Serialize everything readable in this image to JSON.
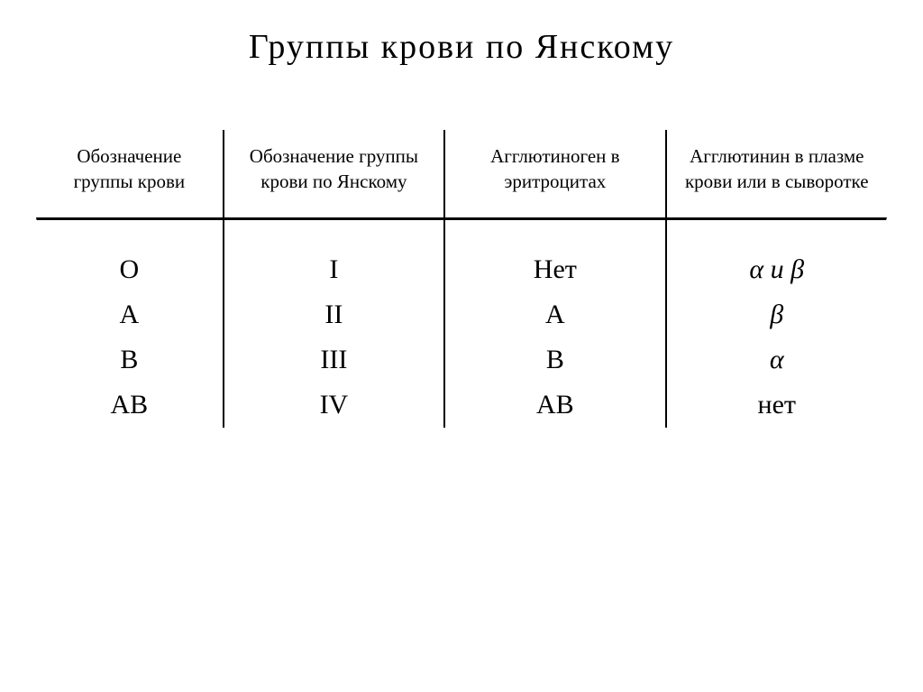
{
  "title": "Группы  крови  по  Янскому",
  "table": {
    "columns": [
      "Обозначение группы крови",
      "Обозначение группы крови по Янскому",
      "Агглютиноген в эритроцитах",
      "Агглютинин в плазме крови или в сыворотке"
    ],
    "rows": [
      {
        "designation": "O",
        "jansky": "I",
        "agglutinogen": "Нет",
        "agglutinin": "α и β"
      },
      {
        "designation": "A",
        "jansky": "II",
        "agglutinogen": "A",
        "agglutinin": "β"
      },
      {
        "designation": "B",
        "jansky": "III",
        "agglutinogen": "B",
        "agglutinin": "α"
      },
      {
        "designation": "AB",
        "jansky": "IV",
        "agglutinogen": "AB",
        "agglutinin": "нет"
      }
    ]
  },
  "styling": {
    "background_color": "#ffffff",
    "text_color": "#000000",
    "title_fontsize": 38,
    "header_fontsize": 21,
    "cell_fontsize": 30,
    "rule_width": 3,
    "vertical_border_width": 2
  }
}
